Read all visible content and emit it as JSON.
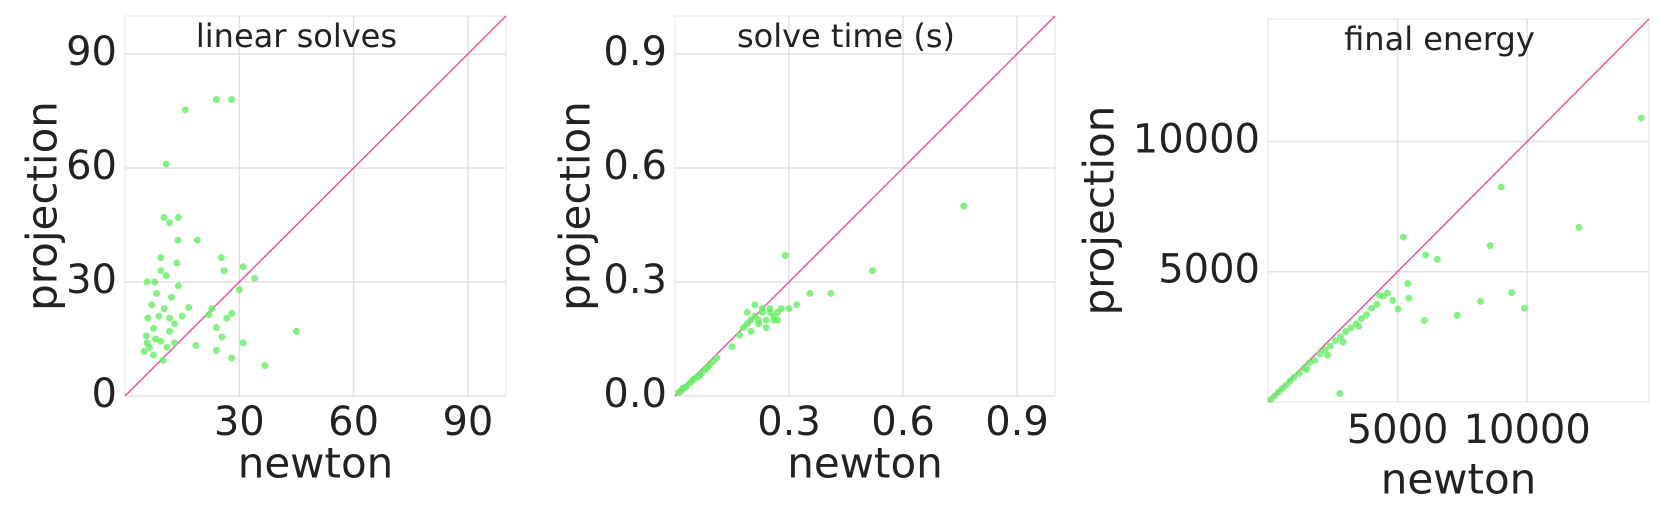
{
  "chart_data": [
    {
      "type": "scatter",
      "title": "linear solves",
      "x_label": "newton",
      "y_label": "projection",
      "xlim": [
        0,
        100
      ],
      "ylim": [
        0,
        100
      ],
      "xticks": [
        30,
        60,
        90
      ],
      "yticks": [
        0,
        30,
        60,
        90
      ],
      "grid": true,
      "color": "#66ee66",
      "diagonal_color": "#e8559f",
      "x": [
        15.8,
        24,
        28,
        10.8,
        10.3,
        14,
        11.7,
        19,
        13.9,
        25.3,
        31,
        26,
        34,
        30,
        5.8,
        7.8,
        9.4,
        10.8,
        13.6,
        9.4,
        14,
        22.8,
        26.7,
        28,
        22,
        24,
        45,
        31,
        25.5,
        24,
        28,
        18.6,
        36.7,
        15,
        13,
        6,
        7.5,
        5.6,
        6.4,
        7.5,
        9.4,
        11,
        11.7,
        8.9,
        10.3,
        12.2,
        7,
        8.3,
        5,
        10,
        16.7,
        11.7,
        8,
        5.8,
        13
      ],
      "values": [
        75.3,
        78,
        78,
        61,
        47,
        47,
        45.6,
        41,
        41,
        36.4,
        34,
        33,
        31,
        28,
        30,
        30,
        33,
        31.7,
        35,
        36.4,
        29,
        23,
        20.5,
        21.7,
        21.4,
        18,
        17,
        14,
        15.5,
        12,
        10,
        13.3,
        8,
        21,
        19,
        20.5,
        17.8,
        15.8,
        12.8,
        10.8,
        14.4,
        12.8,
        17,
        21,
        23,
        26,
        24,
        27,
        11.7,
        9.4,
        23.3,
        20.5,
        15,
        14,
        14
      ]
    },
    {
      "type": "scatter",
      "title": "solve time (s)",
      "x_label": "newton",
      "y_label": "projection",
      "xlim": [
        0,
        1
      ],
      "ylim": [
        0,
        1
      ],
      "xticks": [
        0.3,
        0.6,
        0.9
      ],
      "yticks": [
        {
          "value": 0,
          "label": "0.0"
        },
        0.3,
        0.6,
        0.9
      ],
      "grid": true,
      "color": "#66ee66",
      "diagonal_color": "#e8559f",
      "x": [
        0.76,
        0.52,
        0.29,
        0.41,
        0.355,
        0.01,
        0.02,
        0.03,
        0.04,
        0.05,
        0.06,
        0.07,
        0.08,
        0.09,
        0.1,
        0.11,
        0.015,
        0.025,
        0.045,
        0.065,
        0.085,
        0.15,
        0.17,
        0.18,
        0.19,
        0.2,
        0.21,
        0.22,
        0.23,
        0.24,
        0.25,
        0.26,
        0.27,
        0.28,
        0.19,
        0.2,
        0.22,
        0.24,
        0.26,
        0.21,
        0.23,
        0.25,
        0.27,
        0.3,
        0.32
      ],
      "values": [
        0.5,
        0.33,
        0.37,
        0.27,
        0.27,
        0.01,
        0.02,
        0.025,
        0.035,
        0.045,
        0.05,
        0.06,
        0.07,
        0.08,
        0.09,
        0.1,
        0.012,
        0.022,
        0.04,
        0.055,
        0.075,
        0.13,
        0.16,
        0.18,
        0.19,
        0.2,
        0.21,
        0.19,
        0.22,
        0.2,
        0.23,
        0.21,
        0.22,
        0.23,
        0.22,
        0.17,
        0.2,
        0.18,
        0.2,
        0.24,
        0.23,
        0.22,
        0.2,
        0.23,
        0.24
      ]
    },
    {
      "type": "scatter",
      "title": "final energy",
      "x_label": "newton",
      "y_label": "projection",
      "xlim": [
        0,
        14700
      ],
      "ylim": [
        0,
        14700
      ],
      "xticks": [
        5000,
        10000
      ],
      "yticks": [
        5000,
        10000
      ],
      "grid": true,
      "color": "#66ee66",
      "diagonal_color": "#e8559f",
      "x": [
        14400,
        12000,
        9000,
        8570,
        9400,
        9900,
        8200,
        7300,
        6040,
        5220,
        6530,
        6080,
        5390,
        5430,
        5020,
        4610,
        4450,
        4810,
        2770,
        100,
        250,
        400,
        550,
        700,
        850,
        1000,
        1200,
        1400,
        1600,
        1800,
        2000,
        2200,
        2400,
        2600,
        2800,
        3000,
        3200,
        3400,
        3600,
        3800,
        4000,
        4200,
        1500,
        2300,
        2900,
        3500,
        4300
      ],
      "values": [
        10900,
        6700,
        8250,
        6000,
        4200,
        3600,
        3860,
        3330,
        3130,
        6330,
        5480,
        5640,
        4550,
        3980,
        3570,
        4180,
        4060,
        3900,
        325,
        100,
        230,
        380,
        520,
        650,
        800,
        950,
        1100,
        1300,
        1500,
        1600,
        1850,
        2000,
        2150,
        2350,
        2500,
        2700,
        2850,
        3000,
        3200,
        3350,
        3600,
        3750,
        1250,
        1800,
        2300,
        2900,
        4100
      ]
    }
  ]
}
